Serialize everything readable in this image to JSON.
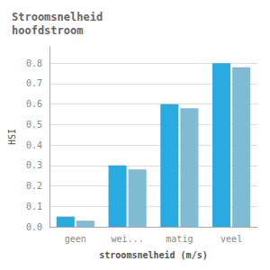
{
  "chart_data": {
    "type": "bar",
    "title": "Stroomsnelheid\nhoofdstroom",
    "xlabel": "stroomsnelheid (m/s)",
    "ylabel": "HSI",
    "categories": [
      "geen",
      "wei...",
      "matig",
      "veel"
    ],
    "series": [
      {
        "color": "#29ABE2",
        "values": [
          0.05,
          0.3,
          0.6,
          0.8
        ]
      },
      {
        "color": "#7FBCD2",
        "values": [
          0.03,
          0.28,
          0.58,
          0.78
        ]
      }
    ],
    "ylim": [
      0.0,
      0.88
    ],
    "yticks": [
      {
        "value": 0.0,
        "label": "0.0"
      },
      0.1,
      0.2,
      0.3,
      0.4,
      0.5,
      0.6,
      0.7,
      0.8
    ],
    "grid": true
  }
}
